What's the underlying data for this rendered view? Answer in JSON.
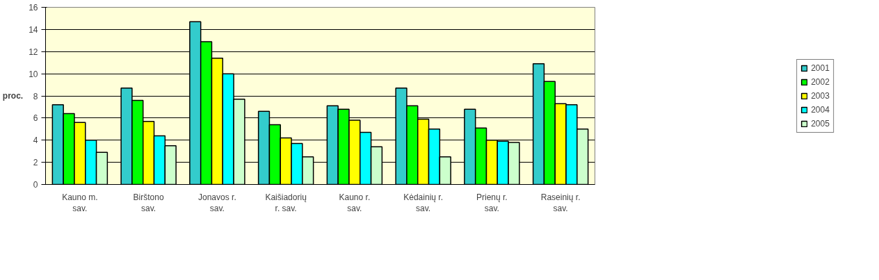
{
  "chart_data": {
    "type": "bar",
    "ylabel": "proc.",
    "categories": [
      "Kauno m.\nsav.",
      "Birštono\nsav.",
      "Jonavos r.\nsav.",
      "Kaišiadorių\nr. sav.",
      "Kauno r.\nsav.",
      "Kėdainių r.\nsav.",
      "Prienų r.\nsav.",
      "Raseinių r.\nsav."
    ],
    "series": [
      {
        "name": "2001",
        "color": "#33cccc",
        "values": [
          7.2,
          8.7,
          14.7,
          6.6,
          7.1,
          8.7,
          6.8,
          10.9
        ]
      },
      {
        "name": "2002",
        "color": "#00ff00",
        "values": [
          6.4,
          7.6,
          12.9,
          5.4,
          6.8,
          7.1,
          5.1,
          9.3
        ]
      },
      {
        "name": "2003",
        "color": "#ffff00",
        "values": [
          5.6,
          5.7,
          11.4,
          4.2,
          5.8,
          5.9,
          4.0,
          7.3
        ]
      },
      {
        "name": "2004",
        "color": "#00ffff",
        "values": [
          4.0,
          4.4,
          10.0,
          3.7,
          4.7,
          5.0,
          3.9,
          7.2
        ]
      },
      {
        "name": "2005",
        "color": "#ccffcc",
        "values": [
          2.9,
          3.5,
          7.7,
          2.5,
          3.4,
          2.5,
          3.8,
          5.0
        ]
      }
    ],
    "ylim": [
      0,
      16
    ],
    "yticks": [
      0,
      2,
      4,
      6,
      8,
      10,
      12,
      14,
      16
    ],
    "grid": "y",
    "legend": "right"
  }
}
